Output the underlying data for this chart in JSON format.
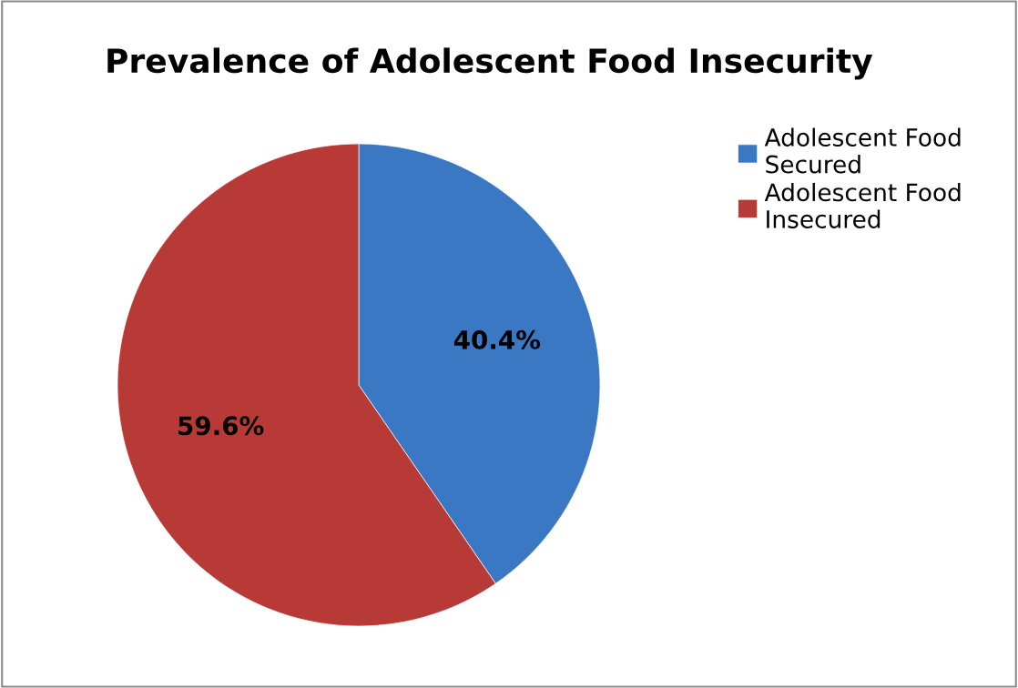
{
  "chart_data": {
    "type": "pie",
    "title": "Prevalence of Adolescent Food Insecurity",
    "categories": [
      "Adolescent Food Secured",
      "Adolescent Food Insecured"
    ],
    "values": [
      40.4,
      59.6
    ],
    "colors": [
      "#3a78c3",
      "#b73a36"
    ],
    "value_labels": [
      "40.4%",
      "59.6%"
    ],
    "legend": "top right"
  }
}
